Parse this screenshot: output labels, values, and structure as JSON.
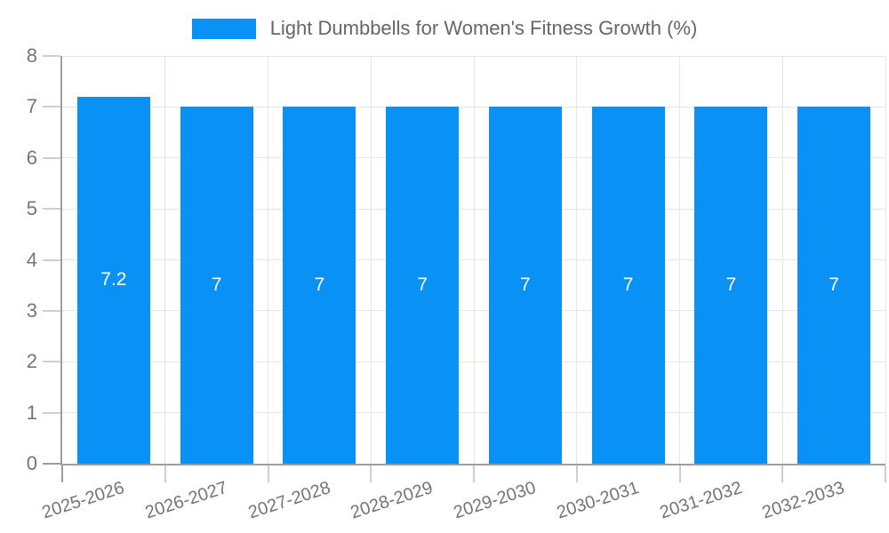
{
  "chart_data": {
    "type": "bar",
    "title": "Light Dumbbells for Women's Fitness Growth (%)",
    "legend_position": "top",
    "categories": [
      "2025-2026",
      "2026-2027",
      "2027-2028",
      "2028-2029",
      "2029-2030",
      "2030-2031",
      "2031-2032",
      "2032-2033"
    ],
    "values": [
      7.2,
      7,
      7,
      7,
      7,
      7,
      7,
      7
    ],
    "bar_value_labels": [
      "7.2",
      "7",
      "7",
      "7",
      "7",
      "7",
      "7",
      "7"
    ],
    "xlabel": "",
    "ylabel": "",
    "ylim": [
      0,
      8
    ],
    "yticks": [
      0,
      1,
      2,
      3,
      4,
      5,
      6,
      7,
      8
    ],
    "grid": true,
    "x_tick_rotation_deg": -18,
    "colors": {
      "bar": "#0991F5",
      "bar_label_text": "#FFFFFF",
      "grid": "#E6E6E6",
      "axis": "#9E9E9E",
      "tick": "#CFCFCF",
      "tick_label_text": "#757575",
      "legend_text": "#666666",
      "background": "#FFFFFF"
    }
  }
}
